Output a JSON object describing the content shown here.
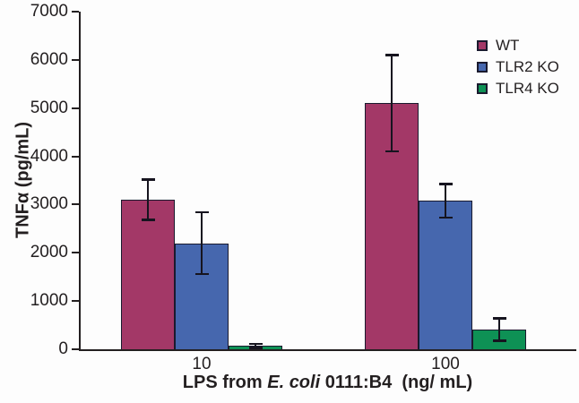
{
  "figure": {
    "background": "#fdfdfd"
  },
  "colors": {
    "axis": "#231f20",
    "text": "#231f20",
    "error_bar": "#16141f",
    "bar_outline": "#1a1a2e"
  },
  "y_axis": {
    "title": "TNFα (pg/mL)",
    "tick_labels": [
      "0",
      "1000",
      "2000",
      "3000",
      "4000",
      "5000",
      "6000",
      "7000"
    ]
  },
  "x_axis": {
    "title_prefix": "LPS from ",
    "title_italic": "E. coli",
    "title_suffix": " 0111:B4  (ng/ mL)",
    "tick_labels": [
      "10",
      "100"
    ]
  },
  "legend": {
    "items": [
      "WT",
      "TLR2 KO",
      "TLR4 KO"
    ]
  },
  "chart_data": {
    "type": "bar",
    "title": "",
    "categories": [
      "10",
      "100"
    ],
    "series": [
      {
        "name": "WT",
        "color": "#a33867",
        "values": [
          3100,
          5100
        ],
        "errors": [
          420,
          1000
        ]
      },
      {
        "name": "TLR2 KO",
        "color": "#4667ae",
        "values": [
          2200,
          3080
        ],
        "errors": [
          640,
          350
        ]
      },
      {
        "name": "TLR4 KO",
        "color": "#0e9155",
        "values": [
          70,
          410
        ],
        "errors": [
          40,
          230
        ]
      }
    ],
    "xlabel": "LPS from E. coli 0111:B4 (ng/ mL)",
    "ylabel": "TNFα (pg/mL)",
    "ylim": [
      0,
      7000
    ],
    "ytick_step": 1000,
    "grid": false,
    "legend_position": "upper-right",
    "error_bars": "symmetric"
  }
}
